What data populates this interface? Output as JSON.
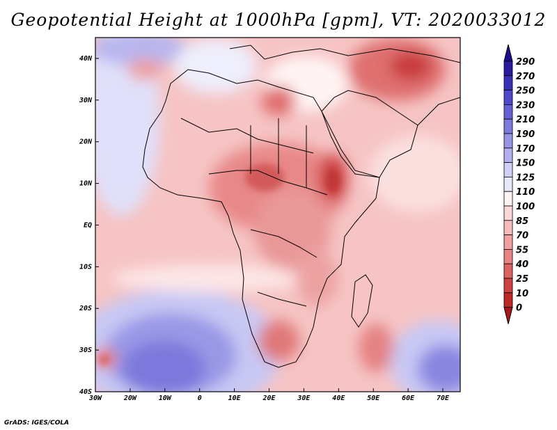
{
  "title": "Geopotential Height at 1000hPa [gpm], VT: 2020033012",
  "credit": "GrADS: IGES/COLA",
  "map": {
    "variable": "Geopotential Height at 1000hPa",
    "units": "gpm",
    "valid_time": "2020033012",
    "lon_range": [
      -30,
      75
    ],
    "lat_range": [
      -40,
      45
    ],
    "lat_labels": [
      "40N",
      "30N",
      "20N",
      "10N",
      "EQ",
      "10S",
      "20S",
      "30S",
      "40S"
    ],
    "lon_labels": [
      "30W",
      "20W",
      "10W",
      "0",
      "10E",
      "20E",
      "30E",
      "40E",
      "50E",
      "60E",
      "70E"
    ]
  },
  "colorbar": {
    "levels": [
      "290",
      "270",
      "250",
      "230",
      "210",
      "190",
      "170",
      "150",
      "125",
      "110",
      "100",
      "85",
      "70",
      "55",
      "40",
      "25",
      "10",
      "0"
    ],
    "colors": [
      "#2a1aa0",
      "#3a30b8",
      "#4f48c8",
      "#6660d4",
      "#7e7ade",
      "#9894e6",
      "#b4b2ee",
      "#d0d0f6",
      "#e8e8fb",
      "#fff4f4",
      "#fbd8d8",
      "#f6bcbc",
      "#f0a0a0",
      "#e88484",
      "#dd6262",
      "#ce4242",
      "#bd2828"
    ],
    "bottom_color": "#a81818",
    "top_color": "#1c0e8c"
  }
}
